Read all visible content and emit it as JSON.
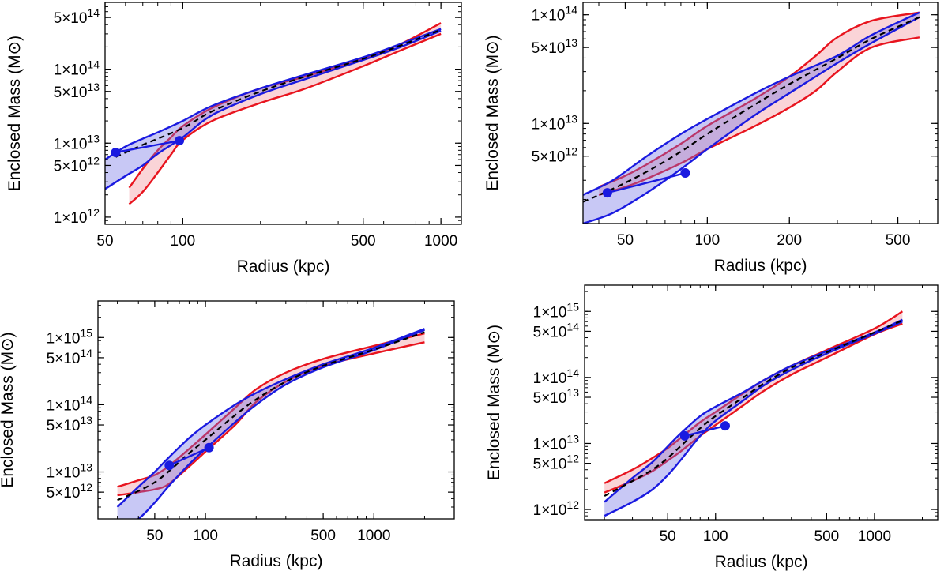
{
  "figure": {
    "background": "#ffffff"
  },
  "chart_data": [
    {
      "type": "line",
      "scale": {
        "x": "log",
        "y": "log"
      },
      "xlabel": "Radius (kpc)",
      "ylabel": "Enclosed Mass (M⊙)",
      "xlim": [
        50,
        1200
      ],
      "ylim": [
        800000000000.0,
        800000000000000.0
      ],
      "xticks": [
        50,
        100,
        500,
        1000
      ],
      "xtick_labels": [
        "50",
        "100",
        "500",
        "1000"
      ],
      "yticks": [
        1000000000000.0,
        5000000000000.0,
        10000000000000.0,
        50000000000000.0,
        100000000000000.0,
        500000000000000.0
      ],
      "ytick_labels": [
        {
          "mant": "1",
          "exp": "12"
        },
        {
          "mant": "5",
          "exp": "12"
        },
        {
          "mant": "1",
          "exp": "13"
        },
        {
          "mant": "5",
          "exp": "13"
        },
        {
          "mant": "1",
          "exp": "14"
        },
        {
          "mant": "5",
          "exp": "14"
        }
      ],
      "red_band": {
        "x": [
          62,
          70,
          80,
          90,
          100,
          130,
          200,
          300,
          500,
          700,
          1000
        ],
        "upper": [
          2500000000000.0,
          4500000000000.0,
          8000000000000.0,
          12000000000000.0,
          17000000000000.0,
          30000000000000.0,
          55000000000000.0,
          80000000000000.0,
          140000000000000.0,
          220000000000000.0,
          420000000000000.0
        ],
        "lower": [
          1500000000000.0,
          2200000000000.0,
          4000000000000.0,
          7000000000000.0,
          11000000000000.0,
          20000000000000.0,
          35000000000000.0,
          55000000000000.0,
          110000000000000.0,
          180000000000000.0,
          300000000000000.0
        ]
      },
      "blue_band": {
        "x": [
          50,
          60,
          70,
          80,
          100,
          130,
          200,
          300,
          500,
          700,
          1000
        ],
        "upper": [
          6000000000000.0,
          9000000000000.0,
          11500000000000.0,
          14000000000000.0,
          20000000000000.0,
          32000000000000.0,
          55000000000000.0,
          85000000000000.0,
          145000000000000.0,
          220000000000000.0,
          350000000000000.0
        ],
        "lower": [
          2400000000000.0,
          3600000000000.0,
          5000000000000.0,
          7200000000000.0,
          12000000000000.0,
          24000000000000.0,
          46000000000000.0,
          74000000000000.0,
          133000000000000.0,
          200000000000000.0,
          330000000000000.0
        ]
      },
      "median": {
        "x": [
          55,
          70,
          100,
          130,
          200,
          300,
          500,
          700,
          1000
        ],
        "y": [
          6500000000000.0,
          9500000000000.0,
          16000000000000.0,
          27000000000000.0,
          50000000000000.0,
          80000000000000.0,
          138000000000000.0,
          210000000000000.0,
          340000000000000.0
        ]
      },
      "points": {
        "x": [
          55,
          97
        ],
        "y": [
          7500000000000.0,
          10800000000000.0
        ]
      }
    },
    {
      "type": "line",
      "scale": {
        "x": "log",
        "y": "log"
      },
      "xlabel": "Radius (kpc)",
      "ylabel": "Enclosed Mass (M⊙)",
      "xlim": [
        35,
        700
      ],
      "ylim": [
        1200000000000.0,
        130000000000000.0
      ],
      "xticks": [
        50,
        100,
        200,
        500
      ],
      "xtick_labels": [
        "50",
        "100",
        "200",
        "500"
      ],
      "yticks": [
        5000000000000.0,
        10000000000000.0,
        50000000000000.0,
        100000000000000.0
      ],
      "ytick_labels": [
        {
          "mant": "5",
          "exp": "12"
        },
        {
          "mant": "1",
          "exp": "13"
        },
        {
          "mant": "5",
          "exp": "13"
        },
        {
          "mant": "1",
          "exp": "14"
        }
      ],
      "red_band": {
        "x": [
          40,
          50,
          60,
          80,
          100,
          150,
          200,
          250,
          300,
          400,
          600
        ],
        "upper": [
          2600000000000.0,
          3300000000000.0,
          4200000000000.0,
          6500000000000.0,
          9500000000000.0,
          17000000000000.0,
          27000000000000.0,
          42000000000000.0,
          62000000000000.0,
          88000000000000.0,
          105000000000000.0
        ],
        "lower": [
          2200000000000.0,
          2600000000000.0,
          3100000000000.0,
          4300000000000.0,
          5800000000000.0,
          9500000000000.0,
          14000000000000.0,
          20000000000000.0,
          30000000000000.0,
          50000000000000.0,
          62000000000000.0
        ]
      },
      "blue_band": {
        "x": [
          35,
          45,
          60,
          80,
          100,
          150,
          200,
          300,
          400,
          600
        ],
        "upper": [
          2200000000000.0,
          3000000000000.0,
          5000000000000.0,
          8000000000000.0,
          11000000000000.0,
          19000000000000.0,
          27000000000000.0,
          42000000000000.0,
          65000000000000.0,
          105000000000000.0
        ],
        "lower": [
          1200000000000.0,
          1500000000000.0,
          2300000000000.0,
          3800000000000.0,
          5800000000000.0,
          12000000000000.0,
          19000000000000.0,
          36000000000000.0,
          55000000000000.0,
          95000000000000.0
        ]
      },
      "median": {
        "x": [
          35,
          45,
          60,
          80,
          100,
          150,
          200,
          300,
          400,
          600
        ],
        "y": [
          1900000000000.0,
          2500000000000.0,
          3600000000000.0,
          5500000000000.0,
          8000000000000.0,
          15000000000000.0,
          23000000000000.0,
          40000000000000.0,
          60000000000000.0,
          95000000000000.0
        ]
      },
      "points": {
        "x": [
          43,
          83
        ],
        "y": [
          2300000000000.0,
          3500000000000.0
        ]
      }
    },
    {
      "type": "line",
      "scale": {
        "x": "log",
        "y": "log"
      },
      "xlabel": "Radius (kpc)",
      "ylabel": "Enclosed Mass (M⊙)",
      "xlim": [
        23,
        3000
      ],
      "ylim": [
        2000000000000.0,
        3500000000000000.0
      ],
      "xticks": [
        50,
        100,
        500,
        1000
      ],
      "xtick_labels": [
        "50",
        "100",
        "500",
        "1000"
      ],
      "yticks": [
        5000000000000.0,
        10000000000000.0,
        50000000000000.0,
        100000000000000.0,
        500000000000000.0,
        1000000000000000.0
      ],
      "ytick_labels": [
        {
          "mant": "5",
          "exp": "12"
        },
        {
          "mant": "1",
          "exp": "13"
        },
        {
          "mant": "5",
          "exp": "13"
        },
        {
          "mant": "1",
          "exp": "14"
        },
        {
          "mant": "5",
          "exp": "14"
        },
        {
          "mant": "1",
          "exp": "15"
        }
      ],
      "red_band": {
        "x": [
          30,
          40,
          50,
          60,
          80,
          100,
          150,
          200,
          300,
          500,
          1000,
          2000
        ],
        "upper": [
          6000000000000.0,
          7500000000000.0,
          9000000000000.0,
          12000000000000.0,
          22000000000000.0,
          36000000000000.0,
          90000000000000.0,
          170000000000000.0,
          300000000000000.0,
          480000000000000.0,
          750000000000000.0,
          1150000000000000.0
        ],
        "lower": [
          4500000000000.0,
          5000000000000.0,
          5500000000000.0,
          6500000000000.0,
          12000000000000.0,
          20000000000000.0,
          50000000000000.0,
          110000000000000.0,
          220000000000000.0,
          380000000000000.0,
          580000000000000.0,
          850000000000000.0
        ]
      },
      "blue_band": {
        "x": [
          30,
          40,
          50,
          60,
          80,
          100,
          150,
          200,
          300,
          500,
          1000,
          2000
        ],
        "upper": [
          3000000000000.0,
          6000000000000.0,
          10000000000000.0,
          16000000000000.0,
          32000000000000.0,
          50000000000000.0,
          100000000000000.0,
          150000000000000.0,
          240000000000000.0,
          400000000000000.0,
          700000000000000.0,
          1350000000000000.0
        ],
        "lower": [
          1300000000000.0,
          2000000000000.0,
          3500000000000.0,
          6000000000000.0,
          13000000000000.0,
          22000000000000.0,
          55000000000000.0,
          100000000000000.0,
          200000000000000.0,
          360000000000000.0,
          650000000000000.0,
          1300000000000000.0
        ]
      },
      "median": {
        "x": [
          30,
          40,
          50,
          60,
          80,
          100,
          150,
          200,
          300,
          500,
          1000,
          2000
        ],
        "y": [
          3800000000000.0,
          5200000000000.0,
          7000000000000.0,
          10000000000000.0,
          19000000000000.0,
          30000000000000.0,
          70000000000000.0,
          120000000000000.0,
          220000000000000.0,
          380000000000000.0,
          660000000000000.0,
          1200000000000000.0
        ]
      },
      "points": {
        "x": [
          61,
          105
        ],
        "y": [
          12500000000000.0,
          23000000000000.0
        ]
      }
    },
    {
      "type": "line",
      "scale": {
        "x": "log",
        "y": "log"
      },
      "xlabel": "Radius (kpc)",
      "ylabel": "Enclosed Mass (M⊙)",
      "xlim": [
        15,
        2500
      ],
      "ylim": [
        700000000000.0,
        2500000000000000.0
      ],
      "xticks": [
        50,
        100,
        500,
        1000
      ],
      "xtick_labels": [
        "50",
        "100",
        "500",
        "1000"
      ],
      "yticks": [
        1000000000000.0,
        5000000000000.0,
        10000000000000.0,
        50000000000000.0,
        100000000000000.0,
        500000000000000.0,
        1000000000000000.0
      ],
      "ytick_labels": [
        {
          "mant": "1",
          "exp": "12"
        },
        {
          "mant": "5",
          "exp": "12"
        },
        {
          "mant": "1",
          "exp": "13"
        },
        {
          "mant": "5",
          "exp": "13"
        },
        {
          "mant": "1",
          "exp": "14"
        },
        {
          "mant": "5",
          "exp": "14"
        },
        {
          "mant": "1",
          "exp": "15"
        }
      ],
      "red_band": {
        "x": [
          20,
          30,
          40,
          50,
          60,
          80,
          100,
          150,
          200,
          300,
          500,
          1000,
          1500
        ],
        "upper": [
          2500000000000.0,
          4000000000000.0,
          6000000000000.0,
          8500000000000.0,
          12000000000000.0,
          21000000000000.0,
          30000000000000.0,
          58000000000000.0,
          90000000000000.0,
          150000000000000.0,
          260000000000000.0,
          550000000000000.0,
          1000000000000000.0
        ],
        "lower": [
          1800000000000.0,
          2700000000000.0,
          3800000000000.0,
          5500000000000.0,
          7500000000000.0,
          13000000000000.0,
          19000000000000.0,
          38000000000000.0,
          62000000000000.0,
          110000000000000.0,
          200000000000000.0,
          450000000000000.0,
          650000000000000.0
        ]
      },
      "blue_band": {
        "x": [
          20,
          30,
          40,
          50,
          60,
          80,
          100,
          150,
          200,
          300,
          500,
          1000,
          1500
        ],
        "upper": [
          1300000000000.0,
          3000000000000.0,
          5200000000000.0,
          9000000000000.0,
          14000000000000.0,
          26000000000000.0,
          36000000000000.0,
          60000000000000.0,
          90000000000000.0,
          150000000000000.0,
          250000000000000.0,
          480000000000000.0,
          750000000000000.0
        ],
        "lower": [
          800000000000.0,
          1300000000000.0,
          2000000000000.0,
          3300000000000.0,
          5500000000000.0,
          13000000000000.0,
          22000000000000.0,
          45000000000000.0,
          75000000000000.0,
          130000000000000.0,
          230000000000000.0,
          460000000000000.0,
          700000000000000.0
        ]
      },
      "median": {
        "x": [
          20,
          30,
          40,
          50,
          60,
          80,
          100,
          150,
          200,
          300,
          500,
          1000,
          1500
        ],
        "y": [
          1600000000000.0,
          2700000000000.0,
          4000000000000.0,
          6000000000000.0,
          9000000000000.0,
          17000000000000.0,
          26000000000000.0,
          50000000000000.0,
          80000000000000.0,
          140000000000000.0,
          240000000000000.0,
          480000000000000.0,
          730000000000000.0
        ]
      },
      "points": {
        "x": [
          64,
          115
        ],
        "y": [
          13000000000000.0,
          18500000000000.0
        ]
      }
    }
  ]
}
